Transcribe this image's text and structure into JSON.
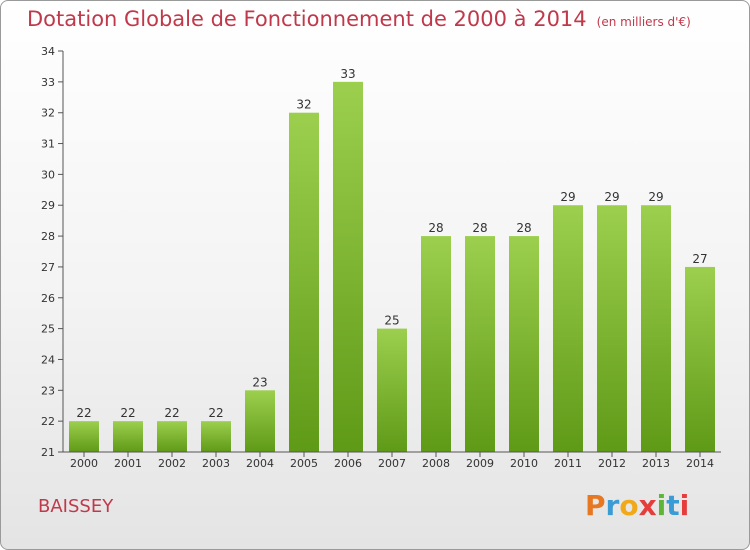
{
  "header": {
    "title": "Dotation Globale de Fonctionnement de 2000 à 2014",
    "subtitle": "(en milliers d'€)"
  },
  "footer": {
    "commune": "BAISSEY",
    "logo": "Proxiti",
    "logo_colors": [
      "#e87722",
      "#3a9bd5",
      "#f1a91a",
      "#e73c3c",
      "#5fb535",
      "#3a9bd5",
      "#e73c3c"
    ]
  },
  "chart_data": {
    "type": "bar",
    "categories": [
      "2000",
      "2001",
      "2002",
      "2003",
      "2004",
      "2005",
      "2006",
      "2007",
      "2008",
      "2009",
      "2010",
      "2011",
      "2012",
      "2013",
      "2014"
    ],
    "values": [
      22,
      22,
      22,
      22,
      23,
      32,
      33,
      25,
      28,
      28,
      28,
      29,
      29,
      29,
      27
    ],
    "ylim": [
      21,
      34
    ],
    "yticks": [
      21,
      22,
      23,
      24,
      25,
      26,
      27,
      28,
      29,
      30,
      31,
      32,
      33,
      34
    ],
    "grid": false,
    "bar_color_top": "#9ccf4e",
    "bar_color_bottom": "#5f9a17",
    "axis_color": "#555555"
  }
}
